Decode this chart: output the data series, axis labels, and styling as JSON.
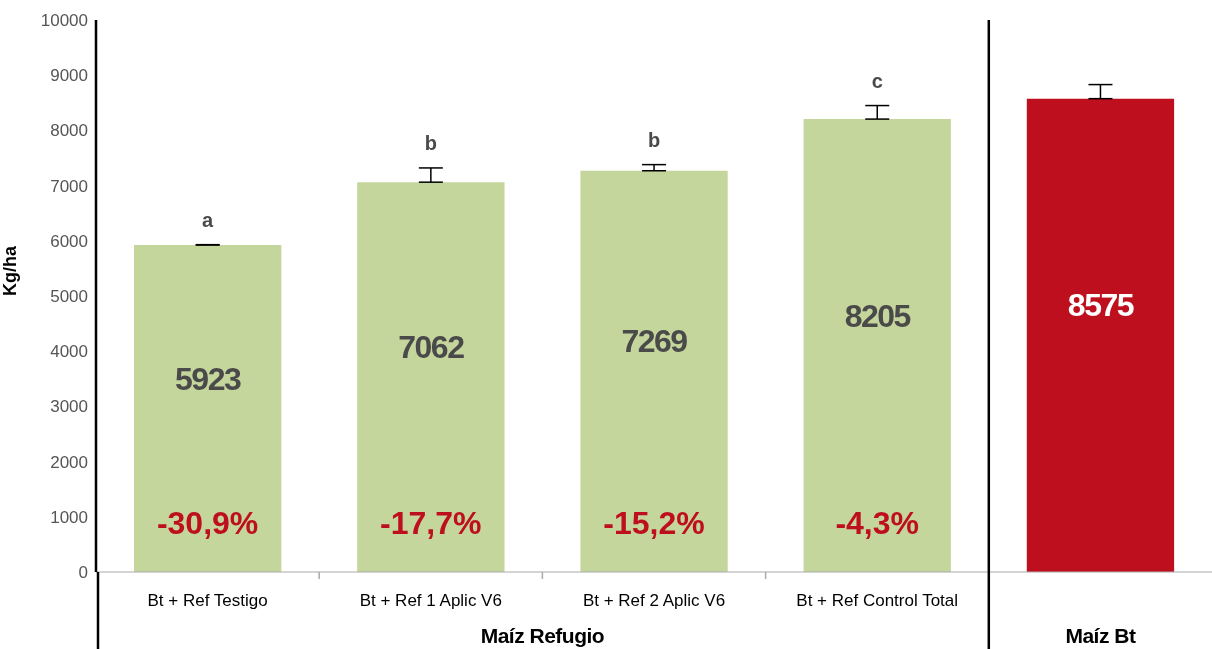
{
  "chart_data": {
    "type": "bar",
    "ylabel": "Kg/ha",
    "categories": [
      "Bt + Ref Testigo",
      "Bt + Ref 1 Aplic V6",
      "Bt + Ref 2 Aplic V6",
      "Bt + Ref Control Total",
      null
    ],
    "values": [
      5923,
      7062,
      7269,
      8205,
      8575
    ],
    "colors": [
      "#c4d69b",
      "#c4d69b",
      "#c4d69b",
      "#c4d69b",
      "#be0f1f"
    ],
    "errors": [
      [
        5923,
        5930
      ],
      [
        7062,
        7320
      ],
      [
        7269,
        7380
      ],
      [
        8205,
        8450
      ],
      [
        8575,
        8830
      ]
    ],
    "data_labels": true,
    "ylim": [
      0,
      10000
    ],
    "yticks": [
      0,
      1000,
      2000,
      3000,
      4000,
      5000,
      6000,
      7000,
      8000,
      9000,
      10000
    ],
    "annotations": [
      "a",
      "b",
      "b",
      "c",
      "-30,9%",
      "-17,7%",
      "-15,2%",
      "-4,3%",
      "Maíz Refugio",
      "Maíz Bt"
    ]
  }
}
